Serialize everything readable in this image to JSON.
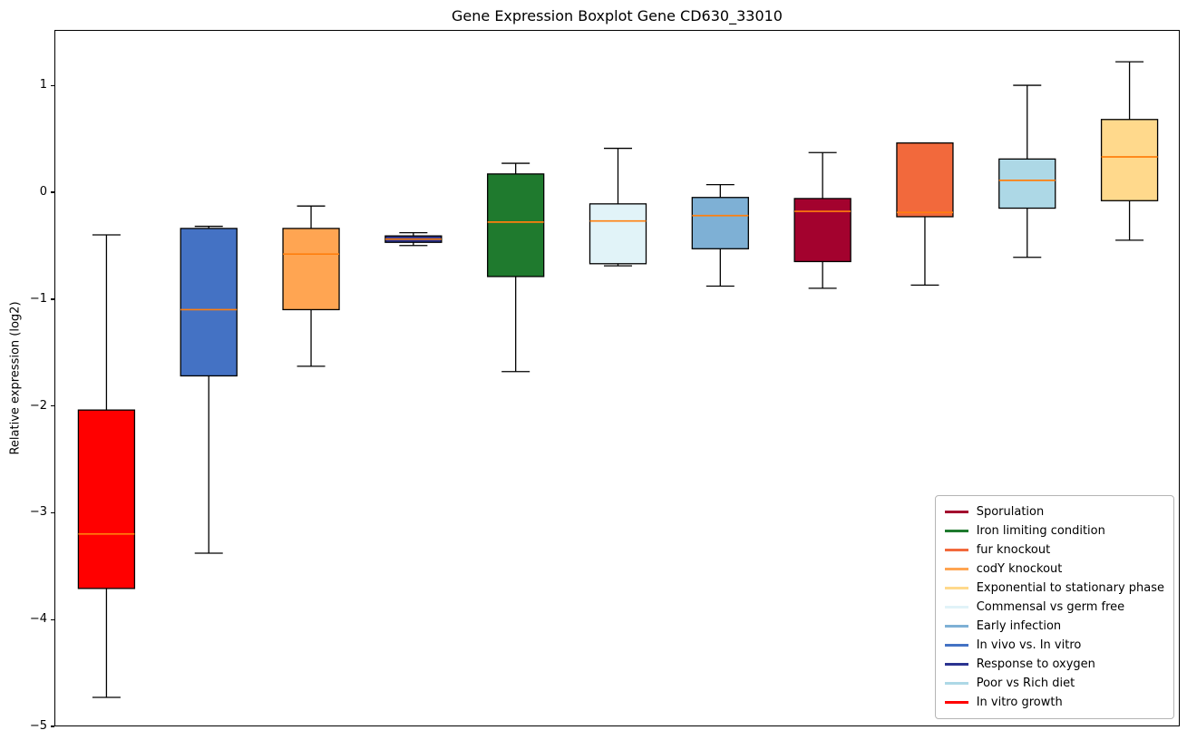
{
  "chart_data": {
    "type": "boxplot",
    "title": "Gene Expression Boxplot Gene CD630_33010",
    "xlabel": "",
    "ylabel": "Relative expression (log2)",
    "ylim": [
      -5.0,
      1.52
    ],
    "yticks": [
      -5,
      -4,
      -3,
      -2,
      -1,
      0,
      1
    ],
    "grid": false,
    "median_color": "#ff7f0e",
    "box_edge_color": "#000000",
    "series": [
      {
        "label": "In vitro growth",
        "color": "#ff0000",
        "whislo": -4.72,
        "q1": -3.7,
        "med": -3.19,
        "q3": -2.03,
        "whishi": -0.39
      },
      {
        "label": "In vivo vs. In vitro",
        "color": "#4472c4",
        "whislo": -3.37,
        "q1": -1.71,
        "med": -1.09,
        "q3": -0.33,
        "whishi": -0.31
      },
      {
        "label": "codY knockout",
        "color": "#ffa552",
        "whislo": -1.62,
        "q1": -1.09,
        "med": -0.57,
        "q3": -0.33,
        "whishi": -0.12
      },
      {
        "label": "Response to oxygen",
        "color": "#2b3390",
        "whislo": -0.49,
        "q1": -0.46,
        "med": -0.43,
        "q3": -0.4,
        "whishi": -0.37
      },
      {
        "label": "Iron limiting condition",
        "color": "#1f7a2e",
        "whislo": -1.67,
        "q1": -0.78,
        "med": -0.27,
        "q3": 0.18,
        "whishi": 0.28
      },
      {
        "label": "Commensal vs germ free",
        "color": "#e1f3f8",
        "whislo": -0.68,
        "q1": -0.66,
        "med": -0.26,
        "q3": -0.1,
        "whishi": 0.42
      },
      {
        "label": "Early infection",
        "color": "#7eb0d5",
        "whislo": -0.87,
        "q1": -0.52,
        "med": -0.21,
        "q3": -0.04,
        "whishi": 0.08
      },
      {
        "label": "Sporulation",
        "color": "#a3022e",
        "whislo": -0.89,
        "q1": -0.64,
        "med": -0.17,
        "q3": -0.05,
        "whishi": 0.38
      },
      {
        "label": "fur knockout",
        "color": "#f2693c",
        "whislo": -0.86,
        "q1": -0.22,
        "med": -0.18,
        "q3": 0.47,
        "whishi": 0.47
      },
      {
        "label": "Poor vs Rich diet",
        "color": "#add8e6",
        "whislo": -0.6,
        "q1": -0.14,
        "med": 0.12,
        "q3": 0.32,
        "whishi": 1.01
      },
      {
        "label": "Exponential to stationary phase",
        "color": "#ffd98c",
        "whislo": -0.44,
        "q1": -0.07,
        "med": 0.34,
        "q3": 0.69,
        "whishi": 1.23
      }
    ],
    "legend": {
      "position": "lower right",
      "entries_order": [
        "Sporulation",
        "Iron limiting condition",
        "fur knockout",
        "codY knockout",
        "Exponential to stationary phase",
        "Commensal vs germ free",
        "Early infection",
        "In vivo vs. In vitro",
        "Response to oxygen",
        "Poor vs Rich diet",
        "In vitro growth"
      ]
    }
  }
}
